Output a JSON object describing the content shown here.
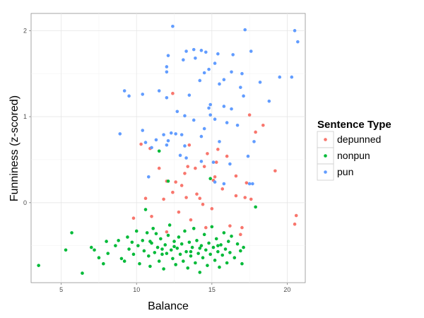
{
  "chart_data": {
    "type": "scatter",
    "xlabel": "Balance",
    "ylabel": "Funniness (z-scored)",
    "xlim": [
      3,
      21.2
    ],
    "ylim": [
      -0.93,
      2.2
    ],
    "x_ticks": [
      5,
      10,
      15,
      20
    ],
    "y_ticks": [
      0,
      1,
      2
    ],
    "x_tick_labels": [
      "5",
      "10",
      "15",
      "20"
    ],
    "y_tick_labels": [
      "0",
      "1",
      "2"
    ],
    "grid": true,
    "legend": {
      "title": "Sentence Type",
      "position": "right"
    },
    "series": [
      {
        "name": "depunned",
        "color": "#F8766D",
        "points": [
          [
            12.4,
            1.27
          ],
          [
            17.5,
            1.02
          ],
          [
            17.9,
            0.82
          ],
          [
            18.4,
            0.9
          ],
          [
            10.3,
            0.68
          ],
          [
            10.9,
            0.63
          ],
          [
            13.5,
            0.67
          ],
          [
            15.4,
            0.62
          ],
          [
            14.7,
            0.57
          ],
          [
            16.0,
            0.54
          ],
          [
            15.3,
            0.47
          ],
          [
            14.5,
            0.42
          ],
          [
            13.9,
            0.4
          ],
          [
            13.4,
            0.42
          ],
          [
            11.5,
            0.4
          ],
          [
            13.2,
            0.34
          ],
          [
            15.2,
            0.3
          ],
          [
            16.6,
            0.31
          ],
          [
            19.2,
            0.37
          ],
          [
            12.0,
            0.25
          ],
          [
            12.6,
            0.24
          ],
          [
            13.0,
            0.2
          ],
          [
            17.3,
            0.23
          ],
          [
            15.1,
            0.26
          ],
          [
            15.7,
            0.16
          ],
          [
            12.4,
            0.12
          ],
          [
            14.0,
            0.1
          ],
          [
            10.6,
            0.05
          ],
          [
            11.8,
            0.04
          ],
          [
            14.2,
            0.05
          ],
          [
            16.6,
            0.08
          ],
          [
            17.2,
            0.06
          ],
          [
            17.6,
            0.04
          ],
          [
            13.3,
            0.06
          ],
          [
            14.4,
            -0.02
          ],
          [
            15.0,
            -0.07
          ],
          [
            12.8,
            -0.11
          ],
          [
            13.6,
            -0.2
          ],
          [
            11.0,
            -0.16
          ],
          [
            9.8,
            -0.18
          ],
          [
            20.6,
            -0.15
          ],
          [
            20.5,
            -0.25
          ],
          [
            17.0,
            -0.29
          ],
          [
            16.9,
            -0.37
          ],
          [
            16.2,
            -0.27
          ],
          [
            12.0,
            -0.34
          ],
          [
            14.6,
            -0.29
          ]
        ]
      },
      {
        "name": "nonpun",
        "color": "#00BA38",
        "points": [
          [
            3.5,
            -0.73
          ],
          [
            5.3,
            -0.55
          ],
          [
            5.7,
            -0.35
          ],
          [
            6.4,
            -0.82
          ],
          [
            7.0,
            -0.52
          ],
          [
            7.2,
            -0.55
          ],
          [
            7.5,
            -0.64
          ],
          [
            7.8,
            -0.71
          ],
          [
            8.0,
            -0.45
          ],
          [
            8.1,
            -0.59
          ],
          [
            8.6,
            -0.5
          ],
          [
            8.8,
            -0.44
          ],
          [
            9.0,
            -0.65
          ],
          [
            9.2,
            -0.68
          ],
          [
            9.4,
            -0.4
          ],
          [
            9.5,
            -0.54
          ],
          [
            9.7,
            -0.46
          ],
          [
            9.8,
            -0.6
          ],
          [
            10.0,
            -0.33
          ],
          [
            10.1,
            -0.5
          ],
          [
            10.2,
            -0.71
          ],
          [
            10.4,
            -0.44
          ],
          [
            10.5,
            -0.56
          ],
          [
            10.6,
            -0.08
          ],
          [
            10.7,
            -0.35
          ],
          [
            10.8,
            -0.62
          ],
          [
            10.9,
            -0.74
          ],
          [
            11.0,
            -0.47
          ],
          [
            11.1,
            -0.3
          ],
          [
            11.2,
            -0.58
          ],
          [
            11.3,
            -0.36
          ],
          [
            11.4,
            -0.52
          ],
          [
            11.5,
            -0.68
          ],
          [
            11.6,
            -0.42
          ],
          [
            11.7,
            -0.54
          ],
          [
            11.8,
            -0.77
          ],
          [
            11.9,
            -0.49
          ],
          [
            12.0,
            -0.59
          ],
          [
            12.1,
            -0.38
          ],
          [
            12.2,
            -0.26
          ],
          [
            12.3,
            -0.55
          ],
          [
            12.4,
            -0.65
          ],
          [
            12.5,
            -0.45
          ],
          [
            12.6,
            -0.72
          ],
          [
            12.7,
            -0.53
          ],
          [
            12.8,
            -0.4
          ],
          [
            12.9,
            -0.6
          ],
          [
            13.0,
            -0.48
          ],
          [
            13.1,
            -0.68
          ],
          [
            13.2,
            -0.33
          ],
          [
            13.3,
            -0.57
          ],
          [
            13.4,
            -0.76
          ],
          [
            13.5,
            -0.46
          ],
          [
            13.6,
            -0.62
          ],
          [
            13.7,
            -0.52
          ],
          [
            13.8,
            -0.3
          ],
          [
            13.9,
            -0.7
          ],
          [
            14.0,
            -0.44
          ],
          [
            14.1,
            -0.59
          ],
          [
            14.2,
            -0.81
          ],
          [
            14.3,
            -0.5
          ],
          [
            14.4,
            -0.64
          ],
          [
            14.5,
            -0.37
          ],
          [
            14.6,
            -0.55
          ],
          [
            14.7,
            -0.73
          ],
          [
            14.8,
            -0.47
          ],
          [
            14.9,
            -0.6
          ],
          [
            15.0,
            -0.28
          ],
          [
            15.1,
            -0.52
          ],
          [
            15.2,
            -0.67
          ],
          [
            15.3,
            -0.42
          ],
          [
            15.4,
            -0.57
          ],
          [
            15.5,
            -0.75
          ],
          [
            15.6,
            -0.49
          ],
          [
            15.7,
            -0.61
          ],
          [
            15.8,
            -0.35
          ],
          [
            15.9,
            -0.54
          ],
          [
            16.0,
            -0.7
          ],
          [
            16.1,
            -0.45
          ],
          [
            16.2,
            -0.58
          ],
          [
            16.3,
            -0.39
          ],
          [
            16.5,
            -0.64
          ],
          [
            16.7,
            -0.48
          ],
          [
            16.9,
            -0.56
          ],
          [
            17.0,
            -0.71
          ],
          [
            17.1,
            -0.52
          ],
          [
            17.9,
            -0.05
          ],
          [
            14.9,
            0.28
          ],
          [
            11.5,
            0.6
          ],
          [
            12.1,
            0.25
          ],
          [
            10.9,
            -0.45
          ],
          [
            12.5,
            -0.51
          ],
          [
            13.6,
            -0.57
          ],
          [
            14.2,
            -0.53
          ],
          [
            15.4,
            -0.5
          ],
          [
            11.7,
            -0.6
          ]
        ]
      },
      {
        "name": "pun",
        "color": "#619CFF",
        "points": [
          [
            12.4,
            2.05
          ],
          [
            17.2,
            2.01
          ],
          [
            20.5,
            2.0
          ],
          [
            20.7,
            1.87
          ],
          [
            13.8,
            1.78
          ],
          [
            14.6,
            1.75
          ],
          [
            16.4,
            1.72
          ],
          [
            17.6,
            1.76
          ],
          [
            13.3,
            1.76
          ],
          [
            14.3,
            1.77
          ],
          [
            15.4,
            1.73
          ],
          [
            12.1,
            1.71
          ],
          [
            13.9,
            1.68
          ],
          [
            13.1,
            1.66
          ],
          [
            15.2,
            1.62
          ],
          [
            12.0,
            1.58
          ],
          [
            14.8,
            1.55
          ],
          [
            16.3,
            1.52
          ],
          [
            12.0,
            1.52
          ],
          [
            14.5,
            1.51
          ],
          [
            17.0,
            1.5
          ],
          [
            18.2,
            1.4
          ],
          [
            19.5,
            1.46
          ],
          [
            20.3,
            1.46
          ],
          [
            15.8,
            1.43
          ],
          [
            15.5,
            1.38
          ],
          [
            14.2,
            1.42
          ],
          [
            16.9,
            1.34
          ],
          [
            11.5,
            1.3
          ],
          [
            9.2,
            1.3
          ],
          [
            9.5,
            1.24
          ],
          [
            10.4,
            1.26
          ],
          [
            12.0,
            1.22
          ],
          [
            13.5,
            1.25
          ],
          [
            17.1,
            1.24
          ],
          [
            18.8,
            1.18
          ],
          [
            14.9,
            1.14
          ],
          [
            15.8,
            1.12
          ],
          [
            14.8,
            1.1
          ],
          [
            12.7,
            1.06
          ],
          [
            16.3,
            1.09
          ],
          [
            13.2,
            1.01
          ],
          [
            14.9,
            1.02
          ],
          [
            13.8,
            0.96
          ],
          [
            15.2,
            0.97
          ],
          [
            16.0,
            0.93
          ],
          [
            16.7,
            0.9
          ],
          [
            14.5,
            0.86
          ],
          [
            10.4,
            0.84
          ],
          [
            12.3,
            0.81
          ],
          [
            12.6,
            0.8
          ],
          [
            8.9,
            0.8
          ],
          [
            11.8,
            0.79
          ],
          [
            13.0,
            0.79
          ],
          [
            14.3,
            0.77
          ],
          [
            11.3,
            0.73
          ],
          [
            12.1,
            0.72
          ],
          [
            15.5,
            0.71
          ],
          [
            10.6,
            0.7
          ],
          [
            11.0,
            0.64
          ],
          [
            12.0,
            0.67
          ],
          [
            13.2,
            0.66
          ],
          [
            17.8,
            0.71
          ],
          [
            12.9,
            0.55
          ],
          [
            13.3,
            0.52
          ],
          [
            17.4,
            0.54
          ],
          [
            15.1,
            0.47
          ],
          [
            14.3,
            0.48
          ],
          [
            16.2,
            0.45
          ],
          [
            10.8,
            0.3
          ],
          [
            15.2,
            0.24
          ],
          [
            17.5,
            0.22
          ],
          [
            17.7,
            0.22
          ],
          [
            15.8,
            0.22
          ]
        ]
      }
    ]
  }
}
